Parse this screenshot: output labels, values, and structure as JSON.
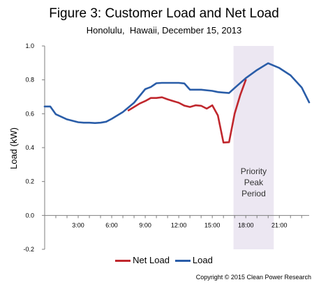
{
  "chart_data": {
    "type": "line",
    "title": "Figure 3: Customer Load and Net Load",
    "subtitle": "Honolulu,  Hawaii, December 15, 2013",
    "ylabel": "Load (kW)",
    "xlabel": "",
    "xlim": [
      0,
      23.67
    ],
    "ylim": [
      -0.2,
      1.0
    ],
    "yticks": [
      -0.2,
      0.0,
      0.2,
      0.4,
      0.6,
      0.8,
      1.0
    ],
    "ytick_labels": [
      "-0.2",
      "0.0",
      "0.2",
      "0.4",
      "0.6",
      "0.8",
      "1.0"
    ],
    "xticks": [
      3,
      6,
      9,
      12,
      15,
      18,
      21
    ],
    "xtick_labels": [
      "3:00",
      "6:00",
      "9:00",
      "12:00",
      "15:00",
      "18:00",
      "21:00"
    ],
    "grid": false,
    "legend_position": "bottom",
    "shaded_region": {
      "x_start": 16.9,
      "x_end": 20.5,
      "color": "#ece7f2",
      "label_lines": [
        "Priority",
        "Peak",
        "Period"
      ]
    },
    "series": [
      {
        "name": "Net Load",
        "color": "#c0272d",
        "x": [
          7.5,
          8.0,
          8.5,
          9.0,
          9.5,
          10.0,
          10.5,
          11.0,
          11.5,
          12.0,
          12.5,
          13.0,
          13.5,
          14.0,
          14.5,
          15.0,
          15.5,
          16.0,
          16.5,
          17.0,
          17.5,
          18.0
        ],
        "y": [
          0.62,
          0.64,
          0.66,
          0.675,
          0.693,
          0.693,
          0.697,
          0.685,
          0.675,
          0.665,
          0.648,
          0.64,
          0.65,
          0.647,
          0.63,
          0.65,
          0.59,
          0.43,
          0.432,
          0.6,
          0.71,
          0.8
        ]
      },
      {
        "name": "Load",
        "color": "#2a5da8",
        "x": [
          0.0,
          0.5,
          1.0,
          2.0,
          3.0,
          3.5,
          4.0,
          4.5,
          5.0,
          5.5,
          6.0,
          7.0,
          8.0,
          9.0,
          9.5,
          10.0,
          10.5,
          11.0,
          12.0,
          12.5,
          13.0,
          14.0,
          15.0,
          15.5,
          16.0,
          16.5,
          17.0,
          18.0,
          19.0,
          20.0,
          21.0,
          22.0,
          23.0,
          23.67
        ],
        "y": [
          0.643,
          0.643,
          0.597,
          0.567,
          0.55,
          0.547,
          0.547,
          0.545,
          0.547,
          0.553,
          0.57,
          0.61,
          0.665,
          0.745,
          0.758,
          0.78,
          0.782,
          0.782,
          0.782,
          0.779,
          0.742,
          0.742,
          0.735,
          0.728,
          0.725,
          0.722,
          0.752,
          0.81,
          0.858,
          0.898,
          0.87,
          0.827,
          0.755,
          0.667
        ]
      }
    ]
  },
  "legend": {
    "items": [
      "Net Load",
      "Load"
    ]
  },
  "copyright": "Copyright © 2015 Clean Power Research",
  "colors": {
    "net_load": "#c0272d",
    "load": "#2a5da8",
    "priority_shade": "#ece7f2",
    "axis": "#7f7f7f"
  }
}
